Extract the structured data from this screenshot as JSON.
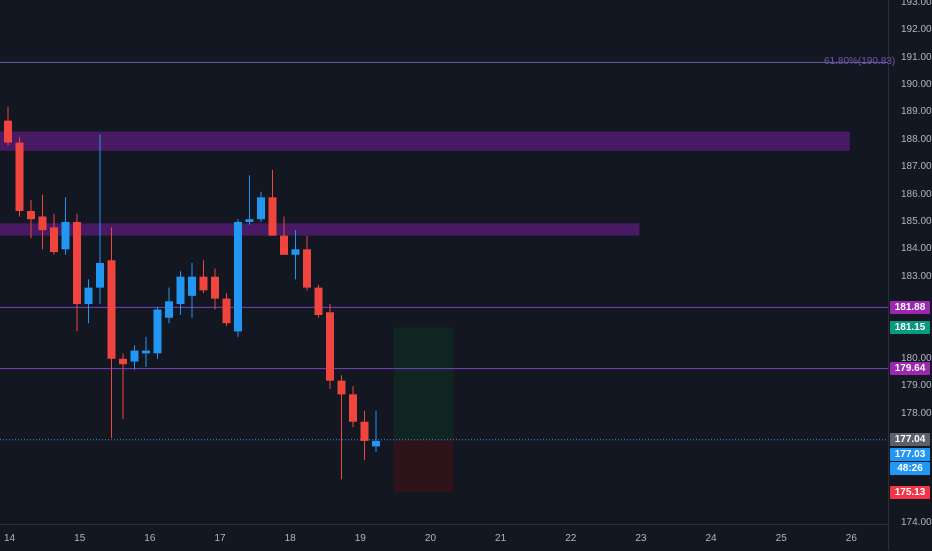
{
  "chart_data": {
    "type": "candlestick",
    "y_range": [
      174,
      193
    ],
    "price_ticks": [
      193,
      192,
      191,
      190,
      189,
      188,
      187,
      186,
      185,
      184,
      183,
      180,
      179,
      178,
      174
    ],
    "price_tick_labels": [
      "193.00",
      "192.00",
      "191.00",
      "190.00",
      "189.00",
      "188.00",
      "187.00",
      "186.00",
      "185.00",
      "184.00",
      "183.00",
      "180.00",
      "179.00",
      "178.00",
      "174.00"
    ],
    "time_ticks": [
      "14",
      "15",
      "16",
      "17",
      "18",
      "19",
      "20",
      "21",
      "22",
      "23",
      "24",
      "25",
      "26"
    ],
    "colors": {
      "up": "#2196f3",
      "down": "#f0453f",
      "zone": "#5b1c7a",
      "hline": "#7b3fc4",
      "fib": "#6b5aa8",
      "current": "#3e9ad8"
    },
    "candles": [
      {
        "o": 188.7,
        "h": 189.2,
        "l": 187.8,
        "c": 187.9
      },
      {
        "o": 187.9,
        "h": 188.1,
        "l": 185.2,
        "c": 185.4
      },
      {
        "o": 185.4,
        "h": 185.8,
        "l": 184.4,
        "c": 185.1
      },
      {
        "o": 185.2,
        "h": 186.0,
        "l": 184.0,
        "c": 184.7
      },
      {
        "o": 184.8,
        "h": 185.3,
        "l": 183.8,
        "c": 183.9
      },
      {
        "o": 184.0,
        "h": 185.9,
        "l": 183.8,
        "c": 185.0
      },
      {
        "o": 185.0,
        "h": 185.3,
        "l": 181.0,
        "c": 182.0
      },
      {
        "o": 182.0,
        "h": 182.9,
        "l": 181.3,
        "c": 182.6
      },
      {
        "o": 182.6,
        "h": 188.2,
        "l": 182.0,
        "c": 183.5
      },
      {
        "o": 183.6,
        "h": 184.8,
        "l": 177.1,
        "c": 180.0
      },
      {
        "o": 180.0,
        "h": 180.2,
        "l": 177.8,
        "c": 179.8
      },
      {
        "o": 179.9,
        "h": 180.5,
        "l": 179.6,
        "c": 180.3
      },
      {
        "o": 180.2,
        "h": 180.8,
        "l": 179.7,
        "c": 180.3
      },
      {
        "o": 180.2,
        "h": 181.9,
        "l": 180.0,
        "c": 181.8
      },
      {
        "o": 181.5,
        "h": 182.6,
        "l": 181.3,
        "c": 182.1
      },
      {
        "o": 182.0,
        "h": 183.2,
        "l": 181.6,
        "c": 183.0
      },
      {
        "o": 182.3,
        "h": 183.5,
        "l": 181.5,
        "c": 183.0
      },
      {
        "o": 183.0,
        "h": 183.6,
        "l": 182.4,
        "c": 182.5
      },
      {
        "o": 183.0,
        "h": 183.3,
        "l": 181.8,
        "c": 182.2
      },
      {
        "o": 182.2,
        "h": 182.4,
        "l": 181.2,
        "c": 181.3
      },
      {
        "o": 181.0,
        "h": 185.1,
        "l": 180.8,
        "c": 185.0
      },
      {
        "o": 185.0,
        "h": 186.7,
        "l": 184.9,
        "c": 185.1
      },
      {
        "o": 185.1,
        "h": 186.1,
        "l": 185.0,
        "c": 185.9
      },
      {
        "o": 185.9,
        "h": 186.9,
        "l": 184.5,
        "c": 184.5
      },
      {
        "o": 184.5,
        "h": 185.2,
        "l": 183.8,
        "c": 183.8
      },
      {
        "o": 183.8,
        "h": 184.7,
        "l": 182.9,
        "c": 184.0
      },
      {
        "o": 184.0,
        "h": 184.5,
        "l": 182.5,
        "c": 182.6
      },
      {
        "o": 182.6,
        "h": 182.7,
        "l": 181.5,
        "c": 181.6
      },
      {
        "o": 181.7,
        "h": 182.0,
        "l": 178.9,
        "c": 179.2
      },
      {
        "o": 179.2,
        "h": 179.4,
        "l": 175.6,
        "c": 178.7
      },
      {
        "o": 178.7,
        "h": 179.0,
        "l": 177.5,
        "c": 177.7
      },
      {
        "o": 177.7,
        "h": 178.1,
        "l": 176.3,
        "c": 177.0
      },
      {
        "o": 176.8,
        "h": 178.1,
        "l": 176.6,
        "c": 177.0
      }
    ],
    "zones": [
      {
        "top": 188.3,
        "bottom": 187.6,
        "end_day": 26
      },
      {
        "top": 184.95,
        "bottom": 184.5,
        "end_day": 23
      }
    ],
    "hlines": [
      181.88,
      179.64
    ],
    "fib": {
      "price": 190.83,
      "label": "61.80%(190.83)"
    },
    "current_price": 177.04,
    "position_box": {
      "start_day": 19.5,
      "end_day": 20.35,
      "entry": 177.04,
      "target": 181.15,
      "stop": 175.13
    }
  },
  "axis_tags": [
    {
      "label": "181.88",
      "price": 181.88,
      "color": "#9c27b0"
    },
    {
      "label": "181.15",
      "price": 181.15,
      "color": "#089981"
    },
    {
      "label": "179.64",
      "price": 179.64,
      "color": "#9c27b0"
    },
    {
      "label": "177.04",
      "price": 177.04,
      "color": "#5d606b"
    },
    {
      "label": "177.03",
      "price": 176.52,
      "color": "#2196f3"
    },
    {
      "label": "48:26",
      "price": 176.0,
      "color": "#2196f3"
    },
    {
      "label": "175.13",
      "price": 175.13,
      "color": "#f23645"
    }
  ]
}
